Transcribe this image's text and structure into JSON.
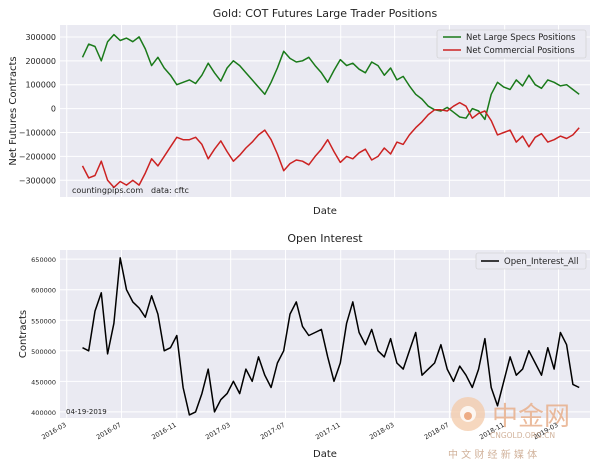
{
  "chart_data": [
    {
      "type": "line",
      "title": "Gold: COT Futures Large Trader Positions",
      "xlabel": "Date",
      "ylabel": "Net Futures Contracts",
      "ylim": [
        -370000,
        350000
      ],
      "yticks": [
        -300000,
        -200000,
        -100000,
        0,
        100000,
        200000,
        300000
      ],
      "ytick_labels": [
        "−300000",
        "−200000",
        "−100000",
        "0",
        "100000",
        "200000",
        "300000"
      ],
      "grid": true,
      "legend": "top-right",
      "annotations": [
        "countingpips.com",
        "data: cftc"
      ],
      "series": [
        {
          "name": "Net Large Specs Positions",
          "color": "#1a7a1a",
          "x": [
            "2016-04-05",
            "2016-04-19",
            "2016-05-03",
            "2016-05-17",
            "2016-05-31",
            "2016-06-14",
            "2016-06-28",
            "2016-07-12",
            "2016-07-26",
            "2016-08-09",
            "2016-08-23",
            "2016-09-06",
            "2016-09-20",
            "2016-10-04",
            "2016-10-18",
            "2016-11-01",
            "2016-11-15",
            "2016-11-29",
            "2016-12-13",
            "2016-12-27",
            "2017-01-10",
            "2017-01-24",
            "2017-02-07",
            "2017-02-21",
            "2017-03-07",
            "2017-03-21",
            "2017-04-04",
            "2017-04-18",
            "2017-05-02",
            "2017-05-16",
            "2017-05-30",
            "2017-06-13",
            "2017-06-27",
            "2017-07-11",
            "2017-07-25",
            "2017-08-08",
            "2017-08-22",
            "2017-09-05",
            "2017-09-19",
            "2017-10-03",
            "2017-10-17",
            "2017-10-31",
            "2017-11-14",
            "2017-11-28",
            "2017-12-12",
            "2017-12-26",
            "2018-01-09",
            "2018-01-23",
            "2018-02-06",
            "2018-02-20",
            "2018-03-06",
            "2018-03-20",
            "2018-04-03",
            "2018-04-17",
            "2018-05-01",
            "2018-05-15",
            "2018-05-29",
            "2018-06-12",
            "2018-06-26",
            "2018-07-10",
            "2018-07-24",
            "2018-08-07",
            "2018-08-21",
            "2018-09-04",
            "2018-09-18",
            "2018-10-02",
            "2018-10-16",
            "2018-10-30",
            "2018-11-13",
            "2018-11-27",
            "2018-12-11",
            "2018-12-25",
            "2019-01-08",
            "2019-01-22",
            "2019-02-05",
            "2019-02-19",
            "2019-03-05",
            "2019-03-19",
            "2019-04-02",
            "2019-04-16"
          ],
          "values": [
            215000,
            270000,
            260000,
            200000,
            280000,
            310000,
            285000,
            295000,
            280000,
            300000,
            250000,
            180000,
            215000,
            170000,
            140000,
            100000,
            110000,
            120000,
            105000,
            140000,
            190000,
            150000,
            115000,
            170000,
            200000,
            180000,
            150000,
            120000,
            90000,
            60000,
            110000,
            170000,
            240000,
            210000,
            195000,
            200000,
            215000,
            180000,
            150000,
            110000,
            160000,
            205000,
            180000,
            190000,
            165000,
            150000,
            195000,
            180000,
            140000,
            170000,
            120000,
            135000,
            95000,
            60000,
            40000,
            10000,
            -5000,
            -10000,
            5000,
            -15000,
            -35000,
            -40000,
            0,
            -10000,
            -45000,
            60000,
            110000,
            90000,
            80000,
            120000,
            95000,
            140000,
            100000,
            85000,
            120000,
            110000,
            95000,
            100000,
            80000,
            60000
          ]
        },
        {
          "name": "Net Commercial Positions",
          "color": "#cc2222",
          "x": [
            "2016-04-05",
            "2016-04-19",
            "2016-05-03",
            "2016-05-17",
            "2016-05-31",
            "2016-06-14",
            "2016-06-28",
            "2016-07-12",
            "2016-07-26",
            "2016-08-09",
            "2016-08-23",
            "2016-09-06",
            "2016-09-20",
            "2016-10-04",
            "2016-10-18",
            "2016-11-01",
            "2016-11-15",
            "2016-11-29",
            "2016-12-13",
            "2016-12-27",
            "2017-01-10",
            "2017-01-24",
            "2017-02-07",
            "2017-02-21",
            "2017-03-07",
            "2017-03-21",
            "2017-04-04",
            "2017-04-18",
            "2017-05-02",
            "2017-05-16",
            "2017-05-30",
            "2017-06-13",
            "2017-06-27",
            "2017-07-11",
            "2017-07-25",
            "2017-08-08",
            "2017-08-22",
            "2017-09-05",
            "2017-09-19",
            "2017-10-03",
            "2017-10-17",
            "2017-10-31",
            "2017-11-14",
            "2017-11-28",
            "2017-12-12",
            "2017-12-26",
            "2018-01-09",
            "2018-01-23",
            "2018-02-06",
            "2018-02-20",
            "2018-03-06",
            "2018-03-20",
            "2018-04-03",
            "2018-04-17",
            "2018-05-01",
            "2018-05-15",
            "2018-05-29",
            "2018-06-12",
            "2018-06-26",
            "2018-07-10",
            "2018-07-24",
            "2018-08-07",
            "2018-08-21",
            "2018-09-04",
            "2018-09-18",
            "2018-10-02",
            "2018-10-16",
            "2018-10-30",
            "2018-11-13",
            "2018-11-27",
            "2018-12-11",
            "2018-12-25",
            "2019-01-08",
            "2019-01-22",
            "2019-02-05",
            "2019-02-19",
            "2019-03-05",
            "2019-03-19",
            "2019-04-02",
            "2019-04-16"
          ],
          "values": [
            -240000,
            -290000,
            -280000,
            -220000,
            -300000,
            -330000,
            -305000,
            -320000,
            -300000,
            -320000,
            -270000,
            -210000,
            -240000,
            -200000,
            -160000,
            -120000,
            -130000,
            -130000,
            -120000,
            -150000,
            -210000,
            -170000,
            -135000,
            -180000,
            -220000,
            -195000,
            -165000,
            -140000,
            -110000,
            -90000,
            -130000,
            -190000,
            -260000,
            -230000,
            -215000,
            -220000,
            -235000,
            -200000,
            -170000,
            -130000,
            -180000,
            -225000,
            -200000,
            -210000,
            -185000,
            -170000,
            -215000,
            -200000,
            -165000,
            -190000,
            -140000,
            -150000,
            -110000,
            -80000,
            -55000,
            -25000,
            -5000,
            -5000,
            -10000,
            10000,
            25000,
            10000,
            -40000,
            -20000,
            -10000,
            -50000,
            -110000,
            -100000,
            -90000,
            -140000,
            -115000,
            -160000,
            -120000,
            -105000,
            -140000,
            -130000,
            -115000,
            -125000,
            -110000,
            -80000
          ]
        }
      ]
    },
    {
      "type": "line",
      "title": "Open Interest",
      "xlabel": "Date",
      "ylabel": "Contracts",
      "ylim": [
        390000,
        665000
      ],
      "yticks": [
        400000,
        450000,
        500000,
        550000,
        600000,
        650000
      ],
      "ytick_labels": [
        "400000",
        "450000",
        "500000",
        "550000",
        "600000",
        "650000"
      ],
      "xtick_labels": [
        "2016-03",
        "2016-07",
        "2016-11",
        "2017-03",
        "2017-07",
        "2017-11",
        "2018-03",
        "2018-07",
        "2018-11",
        "2019-03"
      ],
      "grid": true,
      "legend": "top-right",
      "annotations": [
        "04-19-2019"
      ],
      "series": [
        {
          "name": "Open_Interest_All",
          "color": "#000000",
          "x": [
            "2016-04-05",
            "2016-04-19",
            "2016-05-03",
            "2016-05-17",
            "2016-05-31",
            "2016-06-14",
            "2016-06-28",
            "2016-07-12",
            "2016-07-26",
            "2016-08-09",
            "2016-08-23",
            "2016-09-06",
            "2016-09-20",
            "2016-10-04",
            "2016-10-18",
            "2016-11-01",
            "2016-11-15",
            "2016-11-29",
            "2016-12-13",
            "2016-12-27",
            "2017-01-10",
            "2017-01-24",
            "2017-02-07",
            "2017-02-21",
            "2017-03-07",
            "2017-03-21",
            "2017-04-04",
            "2017-04-18",
            "2017-05-02",
            "2017-05-16",
            "2017-05-30",
            "2017-06-13",
            "2017-06-27",
            "2017-07-11",
            "2017-07-25",
            "2017-08-08",
            "2017-08-22",
            "2017-09-05",
            "2017-09-19",
            "2017-10-03",
            "2017-10-17",
            "2017-10-31",
            "2017-11-14",
            "2017-11-28",
            "2017-12-12",
            "2017-12-26",
            "2018-01-09",
            "2018-01-23",
            "2018-02-06",
            "2018-02-20",
            "2018-03-06",
            "2018-03-20",
            "2018-04-03",
            "2018-04-17",
            "2018-05-01",
            "2018-05-15",
            "2018-05-29",
            "2018-06-12",
            "2018-06-26",
            "2018-07-10",
            "2018-07-24",
            "2018-08-07",
            "2018-08-21",
            "2018-09-04",
            "2018-09-18",
            "2018-10-02",
            "2018-10-16",
            "2018-10-30",
            "2018-11-13",
            "2018-11-27",
            "2018-12-11",
            "2018-12-25",
            "2019-01-08",
            "2019-01-22",
            "2019-02-05",
            "2019-02-19",
            "2019-03-05",
            "2019-03-19",
            "2019-04-02",
            "2019-04-16"
          ],
          "values": [
            505000,
            500000,
            565000,
            595000,
            495000,
            545000,
            652000,
            600000,
            580000,
            570000,
            555000,
            590000,
            560000,
            500000,
            505000,
            525000,
            440000,
            395000,
            400000,
            430000,
            470000,
            400000,
            420000,
            430000,
            450000,
            430000,
            470000,
            450000,
            490000,
            460000,
            440000,
            480000,
            500000,
            560000,
            580000,
            540000,
            525000,
            530000,
            535000,
            490000,
            450000,
            480000,
            545000,
            580000,
            530000,
            510000,
            535000,
            500000,
            490000,
            520000,
            480000,
            470000,
            500000,
            530000,
            460000,
            470000,
            480000,
            510000,
            470000,
            450000,
            475000,
            460000,
            440000,
            470000,
            520000,
            440000,
            410000,
            450000,
            490000,
            460000,
            470000,
            500000,
            480000,
            460000,
            505000,
            470000,
            530000,
            510000,
            445000,
            440000
          ]
        }
      ]
    }
  ],
  "watermark": {
    "logo_text": "中金网",
    "url": "CNGOLD.ORG.CN",
    "tagline": "中 文 财 经 新 媒 体"
  }
}
